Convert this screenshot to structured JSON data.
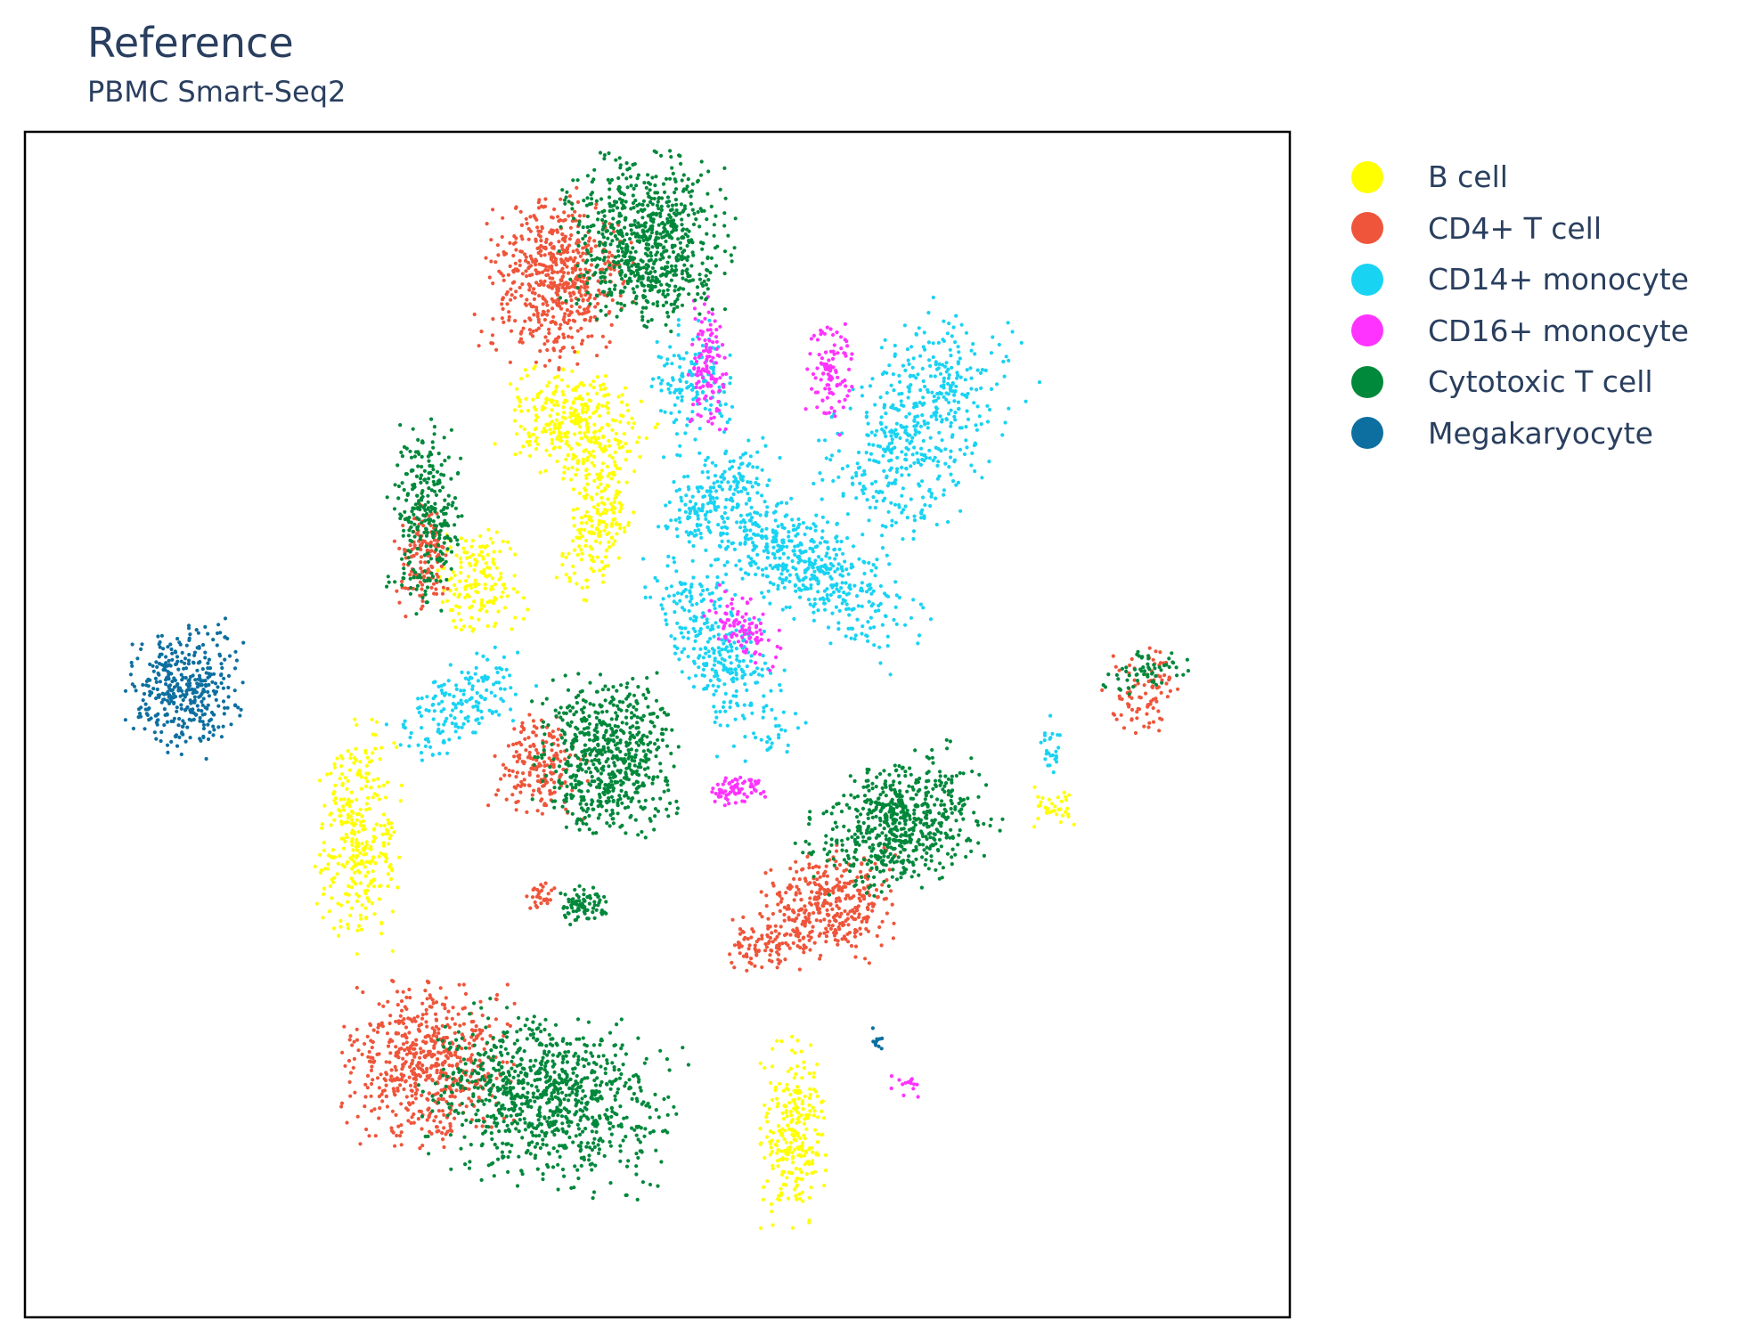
{
  "header": {
    "title": "Reference",
    "subtitle": "PBMC Smart-Seq2"
  },
  "chart_data": {
    "type": "scatter",
    "title": "Reference",
    "subtitle": "PBMC Smart-Seq2",
    "xlabel": "",
    "ylabel": "",
    "xlim": [
      0,
      100
    ],
    "ylim": [
      0,
      100
    ],
    "axes_visible": false,
    "grid": false,
    "legend_position": "right",
    "point_style": "small dots",
    "series": [
      {
        "name": "B cell",
        "color": "#ffff00",
        "clusters": [
          {
            "cx": 43.5,
            "cy": 75.5,
            "sx": 2.5,
            "sy": 2.4,
            "n": 330,
            "rot": -40
          },
          {
            "cx": 45.5,
            "cy": 67.5,
            "sx": 1.3,
            "sy": 3.3,
            "n": 200,
            "rot": -15
          },
          {
            "cx": 35.8,
            "cy": 62.2,
            "sx": 1.7,
            "sy": 2.1,
            "n": 160,
            "rot": 0
          },
          {
            "cx": 26.4,
            "cy": 40.5,
            "sx": 1.5,
            "sy": 4.2,
            "n": 330,
            "rot": 0
          },
          {
            "cx": 60.8,
            "cy": 15.5,
            "sx": 1.2,
            "sy": 3.5,
            "n": 260,
            "rot": 0
          },
          {
            "cx": 81.5,
            "cy": 43.0,
            "sx": 1.0,
            "sy": 0.8,
            "n": 35,
            "rot": 0
          }
        ]
      },
      {
        "name": "CD4+ T cell",
        "color": "#ef553b",
        "clusters": [
          {
            "cx": 42.0,
            "cy": 87.5,
            "sx": 2.6,
            "sy": 3.3,
            "n": 560,
            "rot": 0
          },
          {
            "cx": 31.5,
            "cy": 64.0,
            "sx": 1.0,
            "sy": 2.1,
            "n": 140,
            "rot": 0
          },
          {
            "cx": 40.5,
            "cy": 46.5,
            "sx": 1.7,
            "sy": 2.0,
            "n": 180,
            "rot": 0
          },
          {
            "cx": 31.8,
            "cy": 21.5,
            "sx": 2.9,
            "sy": 3.2,
            "n": 600,
            "rot": 0
          },
          {
            "cx": 63.5,
            "cy": 34.8,
            "sx": 2.3,
            "sy": 2.1,
            "n": 360,
            "rot": 0
          },
          {
            "cx": 58.5,
            "cy": 31.5,
            "sx": 1.3,
            "sy": 1.0,
            "n": 90,
            "rot": 0
          },
          {
            "cx": 88.5,
            "cy": 52.5,
            "sx": 1.4,
            "sy": 1.7,
            "n": 90,
            "rot": 0
          },
          {
            "cx": 40.8,
            "cy": 35.5,
            "sx": 0.6,
            "sy": 0.6,
            "n": 30,
            "rot": 0
          }
        ]
      },
      {
        "name": "CD14+ monocyte",
        "color": "#19d3f3",
        "clusters": [
          {
            "cx": 71.0,
            "cy": 75.5,
            "sx": 2.8,
            "sy": 4.5,
            "n": 500,
            "rot": -30
          },
          {
            "cx": 61.0,
            "cy": 64.0,
            "sx": 5.0,
            "sy": 1.8,
            "n": 550,
            "rot": -35
          },
          {
            "cx": 55.0,
            "cy": 56.0,
            "sx": 1.7,
            "sy": 4.5,
            "n": 330,
            "rot": 25
          },
          {
            "cx": 53.0,
            "cy": 78.5,
            "sx": 1.6,
            "sy": 2.5,
            "n": 140,
            "rot": 0
          },
          {
            "cx": 54.5,
            "cy": 69.5,
            "sx": 2.6,
            "sy": 1.1,
            "n": 140,
            "rot": 40
          },
          {
            "cx": 34.5,
            "cy": 51.5,
            "sx": 2.7,
            "sy": 1.5,
            "n": 170,
            "rot": 40
          },
          {
            "cx": 81.0,
            "cy": 48.5,
            "sx": 0.4,
            "sy": 1.1,
            "n": 25,
            "rot": 0
          }
        ]
      },
      {
        "name": "CD16+ monocyte",
        "color": "#ff33ff",
        "clusters": [
          {
            "cx": 54.0,
            "cy": 80.5,
            "sx": 0.7,
            "sy": 2.7,
            "n": 120,
            "rot": 0
          },
          {
            "cx": 63.7,
            "cy": 79.5,
            "sx": 0.9,
            "sy": 2.3,
            "n": 100,
            "rot": 0
          },
          {
            "cx": 56.8,
            "cy": 58.0,
            "sx": 1.0,
            "sy": 1.8,
            "n": 90,
            "rot": 35
          },
          {
            "cx": 56.0,
            "cy": 44.5,
            "sx": 1.1,
            "sy": 0.6,
            "n": 70,
            "rot": 0
          },
          {
            "cx": 69.5,
            "cy": 19.5,
            "sx": 0.6,
            "sy": 0.5,
            "n": 15,
            "rot": 0
          }
        ]
      },
      {
        "name": "Cytotoxic T cell",
        "color": "#00883b",
        "clusters": [
          {
            "cx": 49.0,
            "cy": 90.5,
            "sx": 3.0,
            "sy": 3.3,
            "n": 750,
            "rot": 0
          },
          {
            "cx": 31.7,
            "cy": 67.5,
            "sx": 1.3,
            "sy": 3.5,
            "n": 280,
            "rot": 0
          },
          {
            "cx": 46.0,
            "cy": 47.5,
            "sx": 2.5,
            "sy": 3.0,
            "n": 620,
            "rot": 0
          },
          {
            "cx": 41.0,
            "cy": 18.5,
            "sx": 4.5,
            "sy": 3.2,
            "n": 900,
            "rot": -10
          },
          {
            "cx": 69.0,
            "cy": 41.5,
            "sx": 3.3,
            "sy": 2.4,
            "n": 620,
            "rot": 30
          },
          {
            "cx": 44.0,
            "cy": 34.8,
            "sx": 0.9,
            "sy": 0.8,
            "n": 80,
            "rot": 0
          },
          {
            "cx": 88.5,
            "cy": 54.5,
            "sx": 1.7,
            "sy": 0.9,
            "n": 60,
            "rot": 0
          }
        ]
      },
      {
        "name": "Megakaryocyte",
        "color": "#0d6fa0",
        "clusters": [
          {
            "cx": 12.5,
            "cy": 53.0,
            "sx": 2.1,
            "sy": 2.6,
            "n": 380,
            "rot": 0
          },
          {
            "cx": 67.5,
            "cy": 23.5,
            "sx": 0.3,
            "sy": 0.4,
            "n": 12,
            "rot": 0
          }
        ]
      }
    ]
  }
}
